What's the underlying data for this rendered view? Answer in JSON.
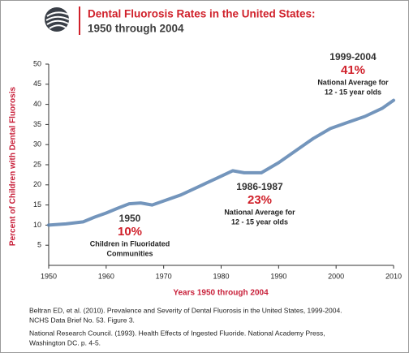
{
  "chart_data": {
    "type": "line",
    "title": "Dental Fluorosis Rates in the United States:",
    "subtitle": "1950 through 2004",
    "x_label": "Years 1950 through 2004",
    "y_label": "Percent of Children with Dental Fluorosis",
    "x": [
      1950,
      1953,
      1956,
      1958,
      1960,
      1962,
      1964,
      1966,
      1968,
      1970,
      1973,
      1976,
      1979,
      1982,
      1984,
      1987,
      1990,
      1993,
      1996,
      1999,
      2002,
      2005,
      2008,
      2010
    ],
    "series": [
      {
        "color": "#5b82b0",
        "values": [
          10,
          10.3,
          10.8,
          12,
          13,
          14.2,
          15.3,
          15.5,
          15,
          16,
          17.5,
          19.5,
          21.5,
          23.5,
          23,
          23,
          25.5,
          28.5,
          31.5,
          34,
          35.5,
          37,
          39,
          41
        ]
      }
    ],
    "xlim": [
      1950,
      2010
    ],
    "xticks": [
      1950,
      1960,
      1970,
      1980,
      1990,
      2000,
      2010
    ],
    "ylim": [
      0,
      50
    ],
    "yticks": [
      5,
      10,
      15,
      20,
      25,
      30,
      35,
      40,
      45,
      50
    ],
    "annotations": [
      {
        "period": "1950",
        "percent": "10%",
        "note": [
          "Children in Fluoridated",
          "Communities"
        ]
      },
      {
        "period": "1986-1987",
        "percent": "23%",
        "note": [
          "National Average for",
          "12 - 15 year olds"
        ]
      },
      {
        "period": "1999-2004",
        "percent": "41%",
        "note": [
          "National Average for",
          "12 - 15 year olds"
        ]
      }
    ]
  },
  "references": [
    [
      "Beltran ED, et al. (2010). Prevalence and Severity of Dental Fluorosis in the United States, 1999-2004.",
      "NCHS Data Brief No. 53. Figure 3."
    ],
    [
      "National Research Council. (1993). Health Effects of Ingested Fluoride. National Academy Press,",
      "Washington DC. p. 4-5."
    ]
  ]
}
